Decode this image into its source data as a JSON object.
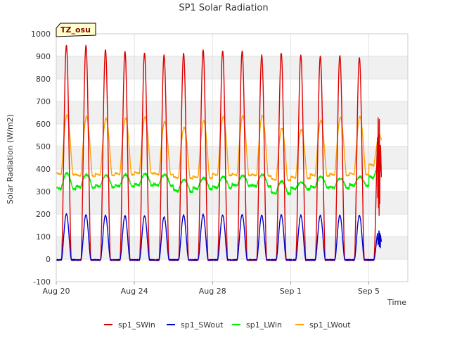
{
  "chart_data": {
    "type": "line",
    "title": "SP1 Solar Radiation",
    "xlabel": "Time",
    "ylabel": "Solar Radiation (W/m2)",
    "badge": "TZ_osu",
    "ylim": [
      -100,
      1000
    ],
    "yticks": [
      -100,
      0,
      100,
      200,
      300,
      400,
      500,
      600,
      700,
      800,
      900,
      1000
    ],
    "xlim": [
      "2023-08-20",
      "2023-09-07"
    ],
    "xticks": [
      {
        "date": "2023-08-20",
        "label": "Aug 20"
      },
      {
        "date": "2023-08-24",
        "label": "Aug 24"
      },
      {
        "date": "2023-08-28",
        "label": "Aug 28"
      },
      {
        "date": "2023-09-01",
        "label": "Sep 1"
      },
      {
        "date": "2023-09-05",
        "label": "Sep 5"
      }
    ],
    "grid": true,
    "legend_position": "bottom",
    "days": [
      "Aug 20",
      "Aug 21",
      "Aug 22",
      "Aug 23",
      "Aug 24",
      "Aug 25",
      "Aug 26",
      "Aug 27",
      "Aug 28",
      "Aug 29",
      "Aug 30",
      "Aug 31",
      "Sep 1",
      "Sep 2",
      "Sep 3",
      "Sep 4",
      "Sep 5"
    ],
    "series": [
      {
        "name": "sp1_SWin",
        "color": "#dd0000",
        "daily_peak": [
          950,
          948,
          930,
          920,
          915,
          905,
          915,
          928,
          925,
          925,
          905,
          915,
          905,
          900,
          905,
          895,
          640
        ],
        "night_value": -5
      },
      {
        "name": "sp1_SWout",
        "color": "#0000cc",
        "daily_peak": [
          200,
          198,
          195,
          192,
          192,
          188,
          195,
          198,
          195,
          198,
          195,
          198,
          195,
          195,
          195,
          195,
          135
        ],
        "night_value": -3
      },
      {
        "name": "sp1_LWin",
        "color": "#00ee00",
        "daily_peak": [
          382,
          375,
          372,
          375,
          378,
          375,
          352,
          360,
          365,
          370,
          375,
          345,
          340,
          365,
          358,
          365,
          420
        ],
        "daily_min": [
          310,
          318,
          320,
          322,
          328,
          326,
          300,
          310,
          315,
          325,
          322,
          290,
          310,
          318,
          315,
          325,
          360
        ]
      },
      {
        "name": "sp1_LWout",
        "color": "#ffa500",
        "daily_peak": [
          640,
          632,
          625,
          625,
          630,
          610,
          585,
          615,
          632,
          635,
          638,
          580,
          575,
          615,
          628,
          632,
          550
        ],
        "daily_min": [
          375,
          368,
          372,
          375,
          380,
          375,
          358,
          360,
          372,
          372,
          370,
          350,
          360,
          370,
          372,
          375,
          415
        ]
      }
    ]
  }
}
